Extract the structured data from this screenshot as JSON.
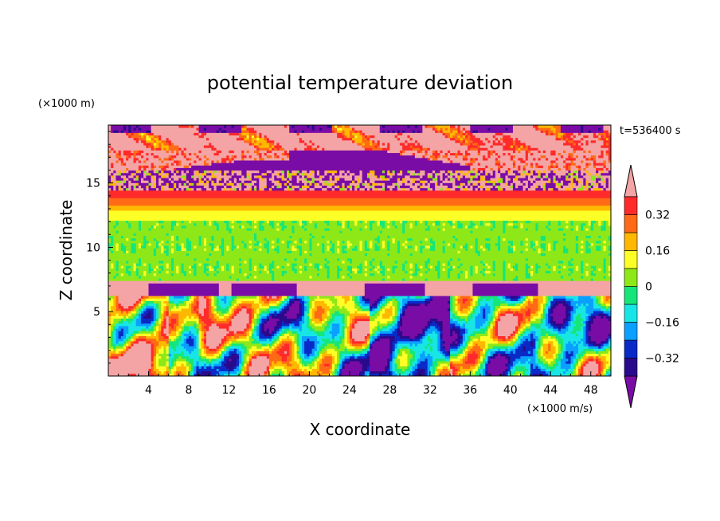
{
  "chart_data": {
    "type": "heatmap",
    "title": "potential temperature deviation",
    "xlabel": "X coordinate",
    "ylabel": "Z coordinate",
    "x_unit": "(×1000 m/s)",
    "y_unit": "(×1000 m)",
    "time_label": "t=536400 s",
    "xlim": [
      0,
      50
    ],
    "ylim": [
      0,
      19.5
    ],
    "x_ticks": [
      4,
      8,
      12,
      16,
      20,
      24,
      28,
      32,
      36,
      40,
      44,
      48
    ],
    "y_ticks": [
      5,
      10,
      15
    ],
    "colorbar": {
      "levels": [
        -0.4,
        -0.32,
        -0.24,
        -0.16,
        -0.08,
        0,
        0.08,
        0.16,
        0.24,
        0.32,
        0.4
      ],
      "colors": [
        "#7a0ca6",
        "#2a0a8c",
        "#0a2ac8",
        "#0aa0ff",
        "#18e6e6",
        "#16e67a",
        "#8ee818",
        "#ffff28",
        "#ffb800",
        "#ff6a16",
        "#ff2a2a",
        "#f4a4a4"
      ],
      "tick_labels": [
        "0.32",
        "0.16",
        "0",
        "−0.16",
        "−0.32"
      ],
      "tick_values": [
        0.32,
        0.16,
        0,
        -0.16,
        -0.32
      ],
      "extend": "both"
    },
    "layers": [
      {
        "z_range": [
          17.5,
          19.5
        ],
        "dominant_value": 0.45
      },
      {
        "z_range": [
          16,
          17.5
        ],
        "dominant_value": -0.45
      },
      {
        "z_range": [
          14.5,
          16
        ],
        "dominant_value": -0.3
      },
      {
        "z_range": [
          13,
          14.5
        ],
        "dominant_value": 0.3
      },
      {
        "z_range": [
          7.5,
          13
        ],
        "dominant_value": 0.05
      },
      {
        "z_range": [
          6.3,
          7.5
        ],
        "dominant_value": 0.45
      },
      {
        "z_range": [
          0,
          6.3
        ],
        "dominant_value": 0.0
      }
    ]
  }
}
